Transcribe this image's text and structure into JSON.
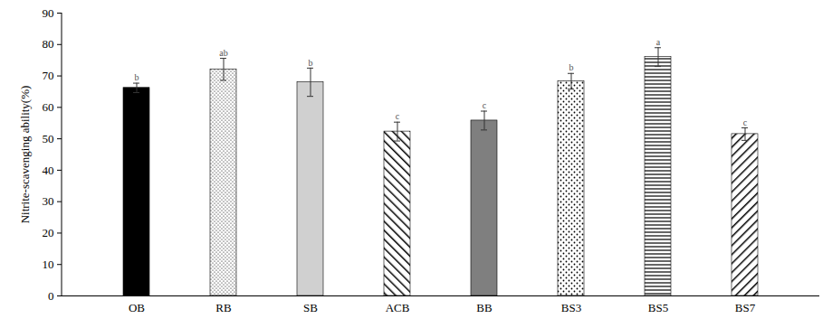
{
  "chart_data": {
    "type": "bar",
    "y_label": "Nitrite-scavenging ability(%)",
    "categories": [
      "OB",
      "RB",
      "SB",
      "ACB",
      "BB",
      "BS3",
      "BS5",
      "BS7"
    ],
    "values": [
      66.2,
      72.1,
      68.0,
      52.3,
      55.8,
      68.3,
      76.0,
      51.5
    ],
    "errors": [
      1.5,
      3.5,
      4.5,
      3.0,
      3.0,
      2.5,
      3.0,
      2.0
    ],
    "letters": [
      "b",
      "ab",
      "b",
      "c",
      "c",
      "b",
      "a",
      "c"
    ],
    "colors": [
      "#000000",
      "#ffffff",
      "#d0d0d0",
      "#ffffff",
      "#7f7f7f",
      "#ffffff",
      "#ffffff",
      "#ffffff"
    ],
    "ylim": [
      0,
      90
    ],
    "yticks": [
      0,
      10,
      20,
      30,
      40,
      50,
      60,
      70,
      80,
      90
    ],
    "grid": false
  }
}
